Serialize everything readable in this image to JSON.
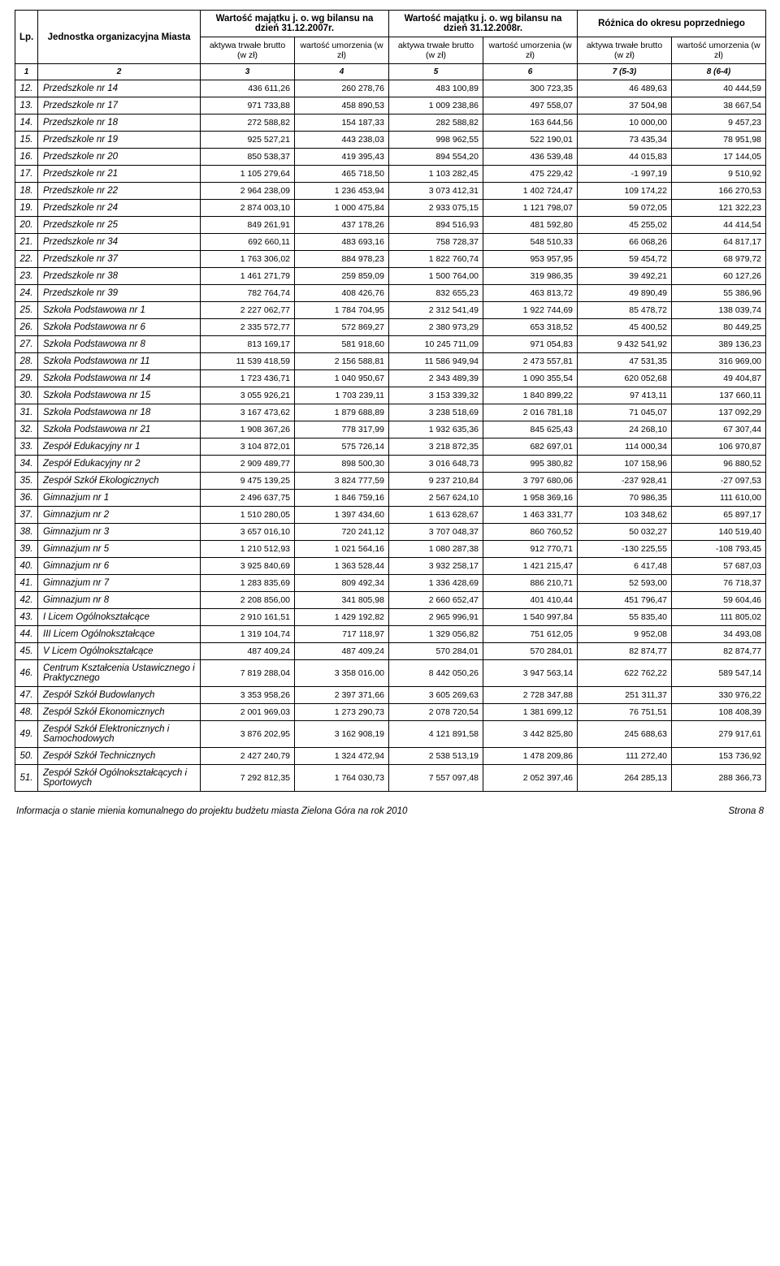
{
  "header": {
    "lp": "Lp.",
    "unit": "Jednostka organizacyjna Miasta",
    "group2007": "Wartość majątku j. o. wg bilansu na dzień 31.12.2007r.",
    "group2008": "Wartość majątku j. o. wg bilansu na dzień 31.12.2008r.",
    "groupDiff": "Różnica do okresu poprzedniego",
    "col_brutto": "aktywa trwałe brutto (w zł)",
    "col_umorz": "wartość umorzenia (w zł)",
    "idx": {
      "c1": "1",
      "c2": "2",
      "c3": "3",
      "c4": "4",
      "c5": "5",
      "c6": "6",
      "c7": "7 (5-3)",
      "c8": "8 (6-4)"
    }
  },
  "rows": [
    {
      "lp": "12.",
      "name": "Przedszkole nr 14",
      "v": [
        "436 611,26",
        "260 278,76",
        "483 100,89",
        "300 723,35",
        "46 489,63",
        "40 444,59"
      ]
    },
    {
      "lp": "13.",
      "name": "Przedszkole nr 17",
      "v": [
        "971 733,88",
        "458 890,53",
        "1 009 238,86",
        "497 558,07",
        "37 504,98",
        "38 667,54"
      ]
    },
    {
      "lp": "14.",
      "name": "Przedszkole nr 18",
      "v": [
        "272 588,82",
        "154 187,33",
        "282 588,82",
        "163 644,56",
        "10 000,00",
        "9 457,23"
      ]
    },
    {
      "lp": "15.",
      "name": "Przedszkole nr 19",
      "v": [
        "925 527,21",
        "443 238,03",
        "998 962,55",
        "522 190,01",
        "73 435,34",
        "78 951,98"
      ]
    },
    {
      "lp": "16.",
      "name": "Przedszkole nr 20",
      "v": [
        "850 538,37",
        "419 395,43",
        "894 554,20",
        "436 539,48",
        "44 015,83",
        "17 144,05"
      ]
    },
    {
      "lp": "17.",
      "name": "Przedszkole nr 21",
      "v": [
        "1 105 279,64",
        "465 718,50",
        "1 103 282,45",
        "475 229,42",
        "-1 997,19",
        "9 510,92"
      ]
    },
    {
      "lp": "18.",
      "name": "Przedszkole nr 22",
      "v": [
        "2 964 238,09",
        "1 236 453,94",
        "3 073 412,31",
        "1 402 724,47",
        "109 174,22",
        "166 270,53"
      ]
    },
    {
      "lp": "19.",
      "name": "Przedszkole nr 24",
      "v": [
        "2 874 003,10",
        "1 000 475,84",
        "2 933 075,15",
        "1 121 798,07",
        "59 072,05",
        "121 322,23"
      ]
    },
    {
      "lp": "20.",
      "name": "Przedszkole nr 25",
      "v": [
        "849 261,91",
        "437 178,26",
        "894 516,93",
        "481 592,80",
        "45 255,02",
        "44 414,54"
      ]
    },
    {
      "lp": "21.",
      "name": "Przedszkole nr 34",
      "v": [
        "692 660,11",
        "483 693,16",
        "758 728,37",
        "548 510,33",
        "66 068,26",
        "64 817,17"
      ]
    },
    {
      "lp": "22.",
      "name": "Przedszkole nr 37",
      "v": [
        "1 763 306,02",
        "884 978,23",
        "1 822 760,74",
        "953 957,95",
        "59 454,72",
        "68 979,72"
      ]
    },
    {
      "lp": "23.",
      "name": "Przedszkole nr 38",
      "v": [
        "1 461 271,79",
        "259 859,09",
        "1 500 764,00",
        "319 986,35",
        "39 492,21",
        "60 127,26"
      ]
    },
    {
      "lp": "24.",
      "name": "Przedszkole nr 39",
      "v": [
        "782 764,74",
        "408 426,76",
        "832 655,23",
        "463 813,72",
        "49 890,49",
        "55 386,96"
      ]
    },
    {
      "lp": "25.",
      "name": "Szkoła Podstawowa nr 1",
      "v": [
        "2 227 062,77",
        "1 784 704,95",
        "2 312 541,49",
        "1 922 744,69",
        "85 478,72",
        "138 039,74"
      ]
    },
    {
      "lp": "26.",
      "name": "Szkoła Podstawowa nr 6",
      "v": [
        "2 335 572,77",
        "572 869,27",
        "2 380 973,29",
        "653 318,52",
        "45 400,52",
        "80 449,25"
      ]
    },
    {
      "lp": "27.",
      "name": "Szkoła Podstawowa nr 8",
      "v": [
        "813 169,17",
        "581 918,60",
        "10 245 711,09",
        "971 054,83",
        "9 432 541,92",
        "389 136,23"
      ]
    },
    {
      "lp": "28.",
      "name": "Szkoła Podstawowa nr 11",
      "v": [
        "11 539 418,59",
        "2 156 588,81",
        "11 586 949,94",
        "2 473 557,81",
        "47 531,35",
        "316 969,00"
      ]
    },
    {
      "lp": "29.",
      "name": "Szkoła Podstawowa nr 14",
      "v": [
        "1 723 436,71",
        "1 040 950,67",
        "2 343 489,39",
        "1 090 355,54",
        "620 052,68",
        "49 404,87"
      ]
    },
    {
      "lp": "30.",
      "name": "Szkoła Podstawowa nr 15",
      "v": [
        "3 055 926,21",
        "1 703 239,11",
        "3 153 339,32",
        "1 840 899,22",
        "97 413,11",
        "137 660,11"
      ]
    },
    {
      "lp": "31.",
      "name": "Szkoła Podstawowa nr 18",
      "v": [
        "3 167 473,62",
        "1 879 688,89",
        "3 238 518,69",
        "2 016 781,18",
        "71 045,07",
        "137 092,29"
      ]
    },
    {
      "lp": "32.",
      "name": "Szkoła Podstawowa nr 21",
      "v": [
        "1 908 367,26",
        "778 317,99",
        "1 932 635,36",
        "845 625,43",
        "24 268,10",
        "67 307,44"
      ]
    },
    {
      "lp": "33.",
      "name": "Zespół Edukacyjny nr 1",
      "v": [
        "3 104 872,01",
        "575 726,14",
        "3 218 872,35",
        "682 697,01",
        "114 000,34",
        "106 970,87"
      ]
    },
    {
      "lp": "34.",
      "name": "Zespół Edukacyjny nr 2",
      "v": [
        "2 909 489,77",
        "898 500,30",
        "3 016 648,73",
        "995 380,82",
        "107 158,96",
        "96 880,52"
      ]
    },
    {
      "lp": "35.",
      "name": "Zespół Szkół Ekologicznych",
      "v": [
        "9 475 139,25",
        "3 824 777,59",
        "9 237 210,84",
        "3 797 680,06",
        "-237 928,41",
        "-27 097,53"
      ]
    },
    {
      "lp": "36.",
      "name": "Gimnazjum nr 1",
      "v": [
        "2 496 637,75",
        "1 846 759,16",
        "2 567 624,10",
        "1 958 369,16",
        "70 986,35",
        "111 610,00"
      ]
    },
    {
      "lp": "37.",
      "name": "Gimnazjum nr 2",
      "v": [
        "1 510 280,05",
        "1 397 434,60",
        "1 613 628,67",
        "1 463 331,77",
        "103 348,62",
        "65 897,17"
      ]
    },
    {
      "lp": "38.",
      "name": "Gimnazjum nr 3",
      "v": [
        "3 657 016,10",
        "720 241,12",
        "3 707 048,37",
        "860 760,52",
        "50 032,27",
        "140 519,40"
      ]
    },
    {
      "lp": "39.",
      "name": "Gimnazjum nr 5",
      "v": [
        "1 210 512,93",
        "1 021 564,16",
        "1 080 287,38",
        "912 770,71",
        "-130 225,55",
        "-108 793,45"
      ]
    },
    {
      "lp": "40.",
      "name": "Gimnazjum nr 6",
      "v": [
        "3 925 840,69",
        "1 363 528,44",
        "3 932 258,17",
        "1 421 215,47",
        "6 417,48",
        "57 687,03"
      ]
    },
    {
      "lp": "41.",
      "name": "Gimnazjum nr 7",
      "v": [
        "1 283 835,69",
        "809 492,34",
        "1 336 428,69",
        "886 210,71",
        "52 593,00",
        "76 718,37"
      ]
    },
    {
      "lp": "42.",
      "name": "Gimnazjum nr 8",
      "v": [
        "2 208 856,00",
        "341 805,98",
        "2 660 652,47",
        "401 410,44",
        "451 796,47",
        "59 604,46"
      ]
    },
    {
      "lp": "43.",
      "name": "I Licem Ogólnokształcące",
      "v": [
        "2 910 161,51",
        "1 429 192,82",
        "2 965 996,91",
        "1 540 997,84",
        "55 835,40",
        "111 805,02"
      ]
    },
    {
      "lp": "44.",
      "name": "III Licem Ogólnokształcące",
      "v": [
        "1 319 104,74",
        "717 118,97",
        "1 329 056,82",
        "751 612,05",
        "9 952,08",
        "34 493,08"
      ]
    },
    {
      "lp": "45.",
      "name": "V Licem Ogólnokształcące",
      "v": [
        "487 409,24",
        "487 409,24",
        "570 284,01",
        "570 284,01",
        "82 874,77",
        "82 874,77"
      ]
    },
    {
      "lp": "46.",
      "name": "Centrum Kształcenia Ustawicznego i Praktycznego",
      "v": [
        "7 819 288,04",
        "3 358 016,00",
        "8 442 050,26",
        "3 947 563,14",
        "622 762,22",
        "589 547,14"
      ]
    },
    {
      "lp": "47.",
      "name": "Zespół Szkół Budowlanych",
      "v": [
        "3 353 958,26",
        "2 397 371,66",
        "3 605 269,63",
        "2 728 347,88",
        "251 311,37",
        "330 976,22"
      ]
    },
    {
      "lp": "48.",
      "name": "Zespół Szkół Ekonomicznych",
      "v": [
        "2 001 969,03",
        "1 273 290,73",
        "2 078 720,54",
        "1 381 699,12",
        "76 751,51",
        "108 408,39"
      ]
    },
    {
      "lp": "49.",
      "name": "Zespół Szkół Elektronicznych i Samochodowych",
      "v": [
        "3 876 202,95",
        "3 162 908,19",
        "4 121 891,58",
        "3 442 825,80",
        "245 688,63",
        "279 917,61"
      ]
    },
    {
      "lp": "50.",
      "name": "Zespół Szkół Technicznych",
      "v": [
        "2 427 240,79",
        "1 324 472,94",
        "2 538 513,19",
        "1 478 209,86",
        "111 272,40",
        "153 736,92"
      ]
    },
    {
      "lp": "51.",
      "name": "Zespół Szkół Ogólnokształcących i Sportowych",
      "v": [
        "7 292 812,35",
        "1 764 030,73",
        "7 557 097,48",
        "2 052 397,46",
        "264 285,13",
        "288 366,73"
      ]
    }
  ],
  "footer": {
    "left": "Informacja o stanie mienia komunalnego do projektu budżetu miasta Zielona Góra na rok 2010",
    "right": "Strona 8"
  }
}
